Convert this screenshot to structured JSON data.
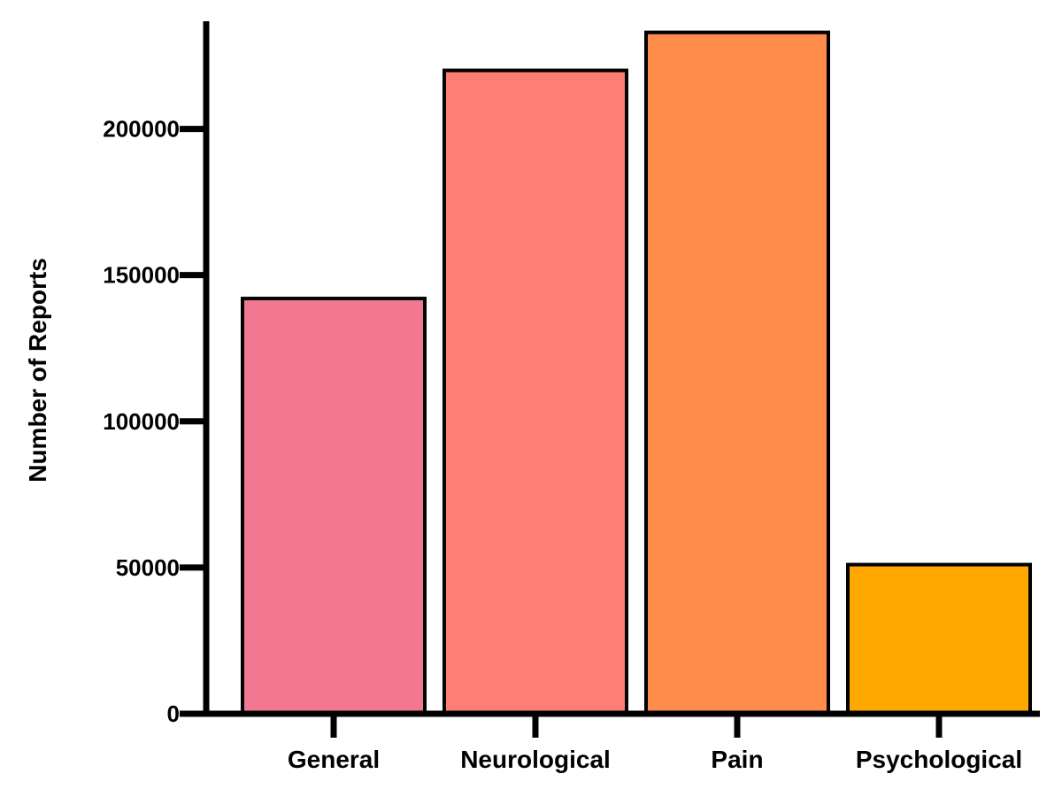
{
  "chart_data": {
    "type": "bar",
    "categories": [
      "General",
      "Neurological",
      "Pain",
      "Psychological"
    ],
    "values": [
      142000,
      220000,
      233000,
      51000
    ],
    "colors": [
      "#F27892",
      "#FF7E74",
      "#FF8C4A",
      "#FFA800"
    ],
    "title": "",
    "xlabel": "",
    "ylabel": "Number of Reports",
    "ylim": [
      0,
      235000
    ],
    "yticks": [
      0,
      50000,
      100000,
      150000,
      200000
    ],
    "ytick_labels": [
      "0",
      "50000",
      "100000",
      "150000",
      "200000"
    ],
    "grid": false,
    "legend": "none",
    "bar_edge_color": "#000000"
  }
}
